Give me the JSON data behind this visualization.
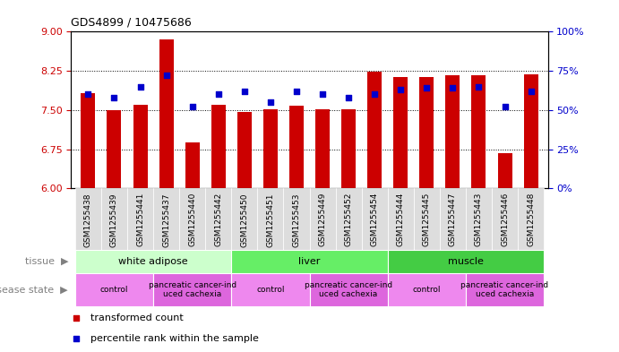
{
  "title": "GDS4899 / 10475686",
  "samples": [
    "GSM1255438",
    "GSM1255439",
    "GSM1255441",
    "GSM1255437",
    "GSM1255440",
    "GSM1255442",
    "GSM1255450",
    "GSM1255451",
    "GSM1255453",
    "GSM1255449",
    "GSM1255452",
    "GSM1255454",
    "GSM1255444",
    "GSM1255445",
    "GSM1255447",
    "GSM1255443",
    "GSM1255446",
    "GSM1255448"
  ],
  "transformed_count": [
    7.82,
    7.5,
    7.6,
    8.85,
    6.88,
    7.6,
    7.47,
    7.52,
    7.58,
    7.52,
    7.52,
    8.24,
    8.13,
    8.13,
    8.17,
    8.17,
    6.68,
    8.19
  ],
  "percentile_rank": [
    60,
    58,
    65,
    72,
    52,
    60,
    62,
    55,
    62,
    60,
    58,
    60,
    63,
    64,
    64,
    65,
    52,
    62
  ],
  "ylim_left": [
    6,
    9
  ],
  "ylim_right": [
    0,
    100
  ],
  "yticks_left": [
    6,
    6.75,
    7.5,
    8.25,
    9
  ],
  "yticks_right": [
    0,
    25,
    50,
    75,
    100
  ],
  "bar_color": "#cc0000",
  "dot_color": "#0000cc",
  "tissue_groups": [
    {
      "label": "white adipose",
      "start": 0,
      "end": 5,
      "color": "#ccffcc"
    },
    {
      "label": "liver",
      "start": 6,
      "end": 11,
      "color": "#66ee66"
    },
    {
      "label": "muscle",
      "start": 12,
      "end": 17,
      "color": "#44cc44"
    }
  ],
  "disease_groups": [
    {
      "label": "control",
      "start": 0,
      "end": 2,
      "color": "#ee88ee"
    },
    {
      "label": "pancreatic cancer-ind\nuced cachexia",
      "start": 3,
      "end": 5,
      "color": "#dd66dd"
    },
    {
      "label": "control",
      "start": 6,
      "end": 8,
      "color": "#ee88ee"
    },
    {
      "label": "pancreatic cancer-ind\nuced cachexia",
      "start": 9,
      "end": 11,
      "color": "#dd66dd"
    },
    {
      "label": "control",
      "start": 12,
      "end": 14,
      "color": "#ee88ee"
    },
    {
      "label": "pancreatic cancer-ind\nuced cachexia",
      "start": 15,
      "end": 17,
      "color": "#dd66dd"
    }
  ],
  "grid_yticks": [
    6.75,
    7.5,
    8.25
  ],
  "xlabel_bg": "#dddddd"
}
